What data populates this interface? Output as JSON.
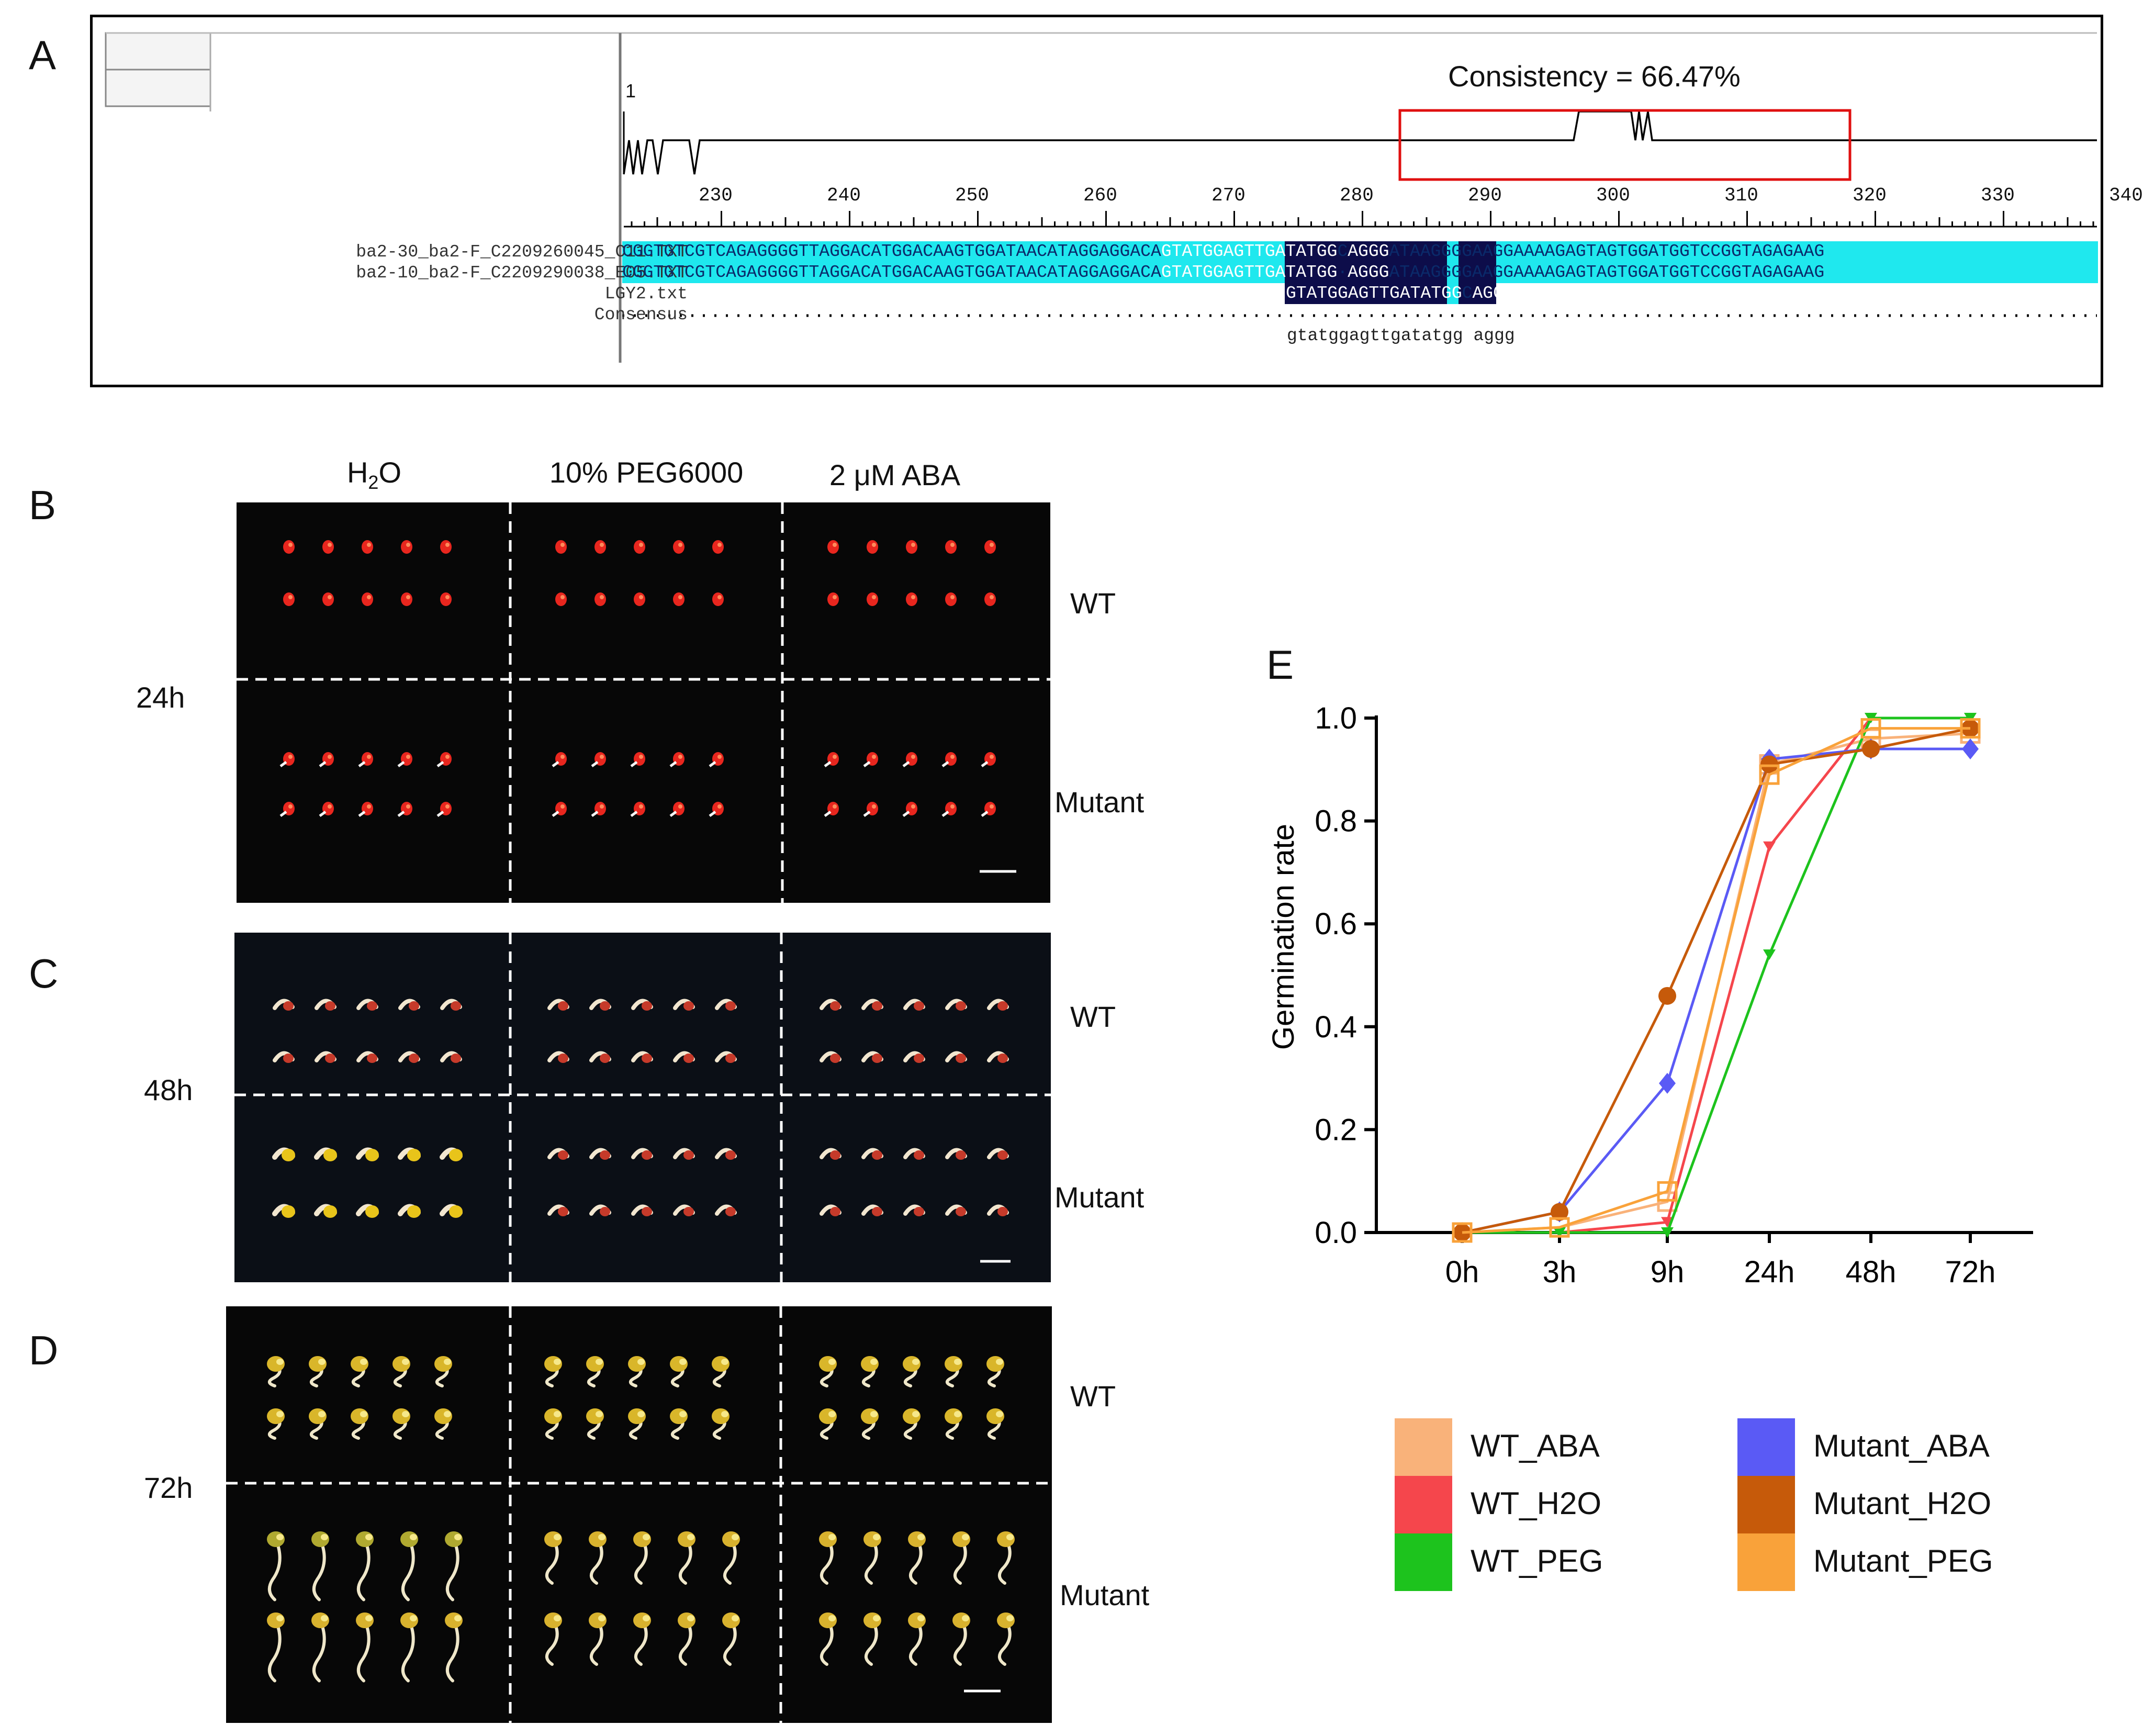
{
  "panels": {
    "a": "A",
    "b": "B",
    "c": "C",
    "d": "D",
    "e": "E"
  },
  "alignment": {
    "ruler_start": "1",
    "consistency": "Consistency = 66.47%",
    "ticks": [
      "230",
      "240",
      "250",
      "260",
      "270",
      "280",
      "290",
      "300",
      "310",
      "320",
      "330",
      "340"
    ],
    "sequences": [
      {
        "name": "ba2-30_ba2-F_C2209260045_C11.TXT",
        "left": "CGGTGTCGTCAGAGGGGTTAGGACATGGACAAGTGGATAACATAGGAGGACA",
        "mid": "GTATGGAGTTGATATGG",
        "gap": "C",
        "mid2": "AGGG",
        "right": "ATAAGGGGAAGGAAAAGAGTAGTGGATGGTCCGGTAGAGAAG"
      },
      {
        "name": "ba2-10_ba2-F_C2209290038_E05.TXT",
        "left": "CGGTGTCGTCAGAGGGGTTAGGACATGGACAAGTGGATAACATAGGAGGACA",
        "mid": "GTATGGAGTTGATATGG",
        "gap": "·",
        "mid2": "AGGG",
        "right": "ATAAGGGGAAGGAAAAGAGTAGTGGATGGTCCGGTAGAGAAG"
      },
      {
        "name": "LGY2.txt",
        "left": "",
        "mid": "GTATGGAGTTGATATGG",
        "gap": "C",
        "mid2": "AGGG",
        "right": ""
      },
      {
        "name": "Consensus",
        "left": "",
        "mid": "",
        "gap": "",
        "mid2": "",
        "right": ""
      }
    ],
    "consensus_text": "gtatggagttgatatgg aggg"
  },
  "treatments": [
    "H2O",
    "10% PEG6000",
    "2 μM ABA"
  ],
  "rows": {
    "wt": "WT",
    "mutant": "Mutant"
  },
  "times": {
    "b": "24h",
    "c": "48h",
    "d": "72h"
  },
  "colors": {
    "WT_ABA": "#f9b27a",
    "WT_H2O": "#f5464c",
    "WT_PEG": "#1dc31d",
    "Mutant_ABA": "#5a5af5",
    "Mutant_H2O": "#c65a0a",
    "Mutant_PEG": "#f9a23a",
    "cyan": "#1fe8ee",
    "navy": "#0d0d4a",
    "red_box": "#e01010"
  },
  "chart_data": {
    "type": "line",
    "title": "",
    "xlabel": "",
    "ylabel": "Germination rate",
    "categories": [
      "0h",
      "3h",
      "9h",
      "24h",
      "48h",
      "72h"
    ],
    "ylim": [
      0,
      1.0
    ],
    "yticks": [
      "0.0",
      "0.2",
      "0.4",
      "0.6",
      "0.8",
      "1.0"
    ],
    "series": [
      {
        "name": "WT_ABA",
        "values": [
          0,
          0.01,
          0.06,
          0.91,
          0.96,
          0.97
        ]
      },
      {
        "name": "WT_H2O",
        "values": [
          0,
          0.0,
          0.02,
          0.75,
          1.0,
          1.0
        ]
      },
      {
        "name": "WT_PEG",
        "values": [
          0,
          0.0,
          0.0,
          0.54,
          1.0,
          1.0
        ]
      },
      {
        "name": "Mutant_ABA",
        "values": [
          0,
          0.04,
          0.29,
          0.92,
          0.94,
          0.94
        ]
      },
      {
        "name": "Mutant_H2O",
        "values": [
          0,
          0.04,
          0.46,
          0.91,
          0.94,
          0.98
        ]
      },
      {
        "name": "Mutant_PEG",
        "values": [
          0,
          0.01,
          0.08,
          0.89,
          0.98,
          0.98
        ]
      }
    ]
  }
}
